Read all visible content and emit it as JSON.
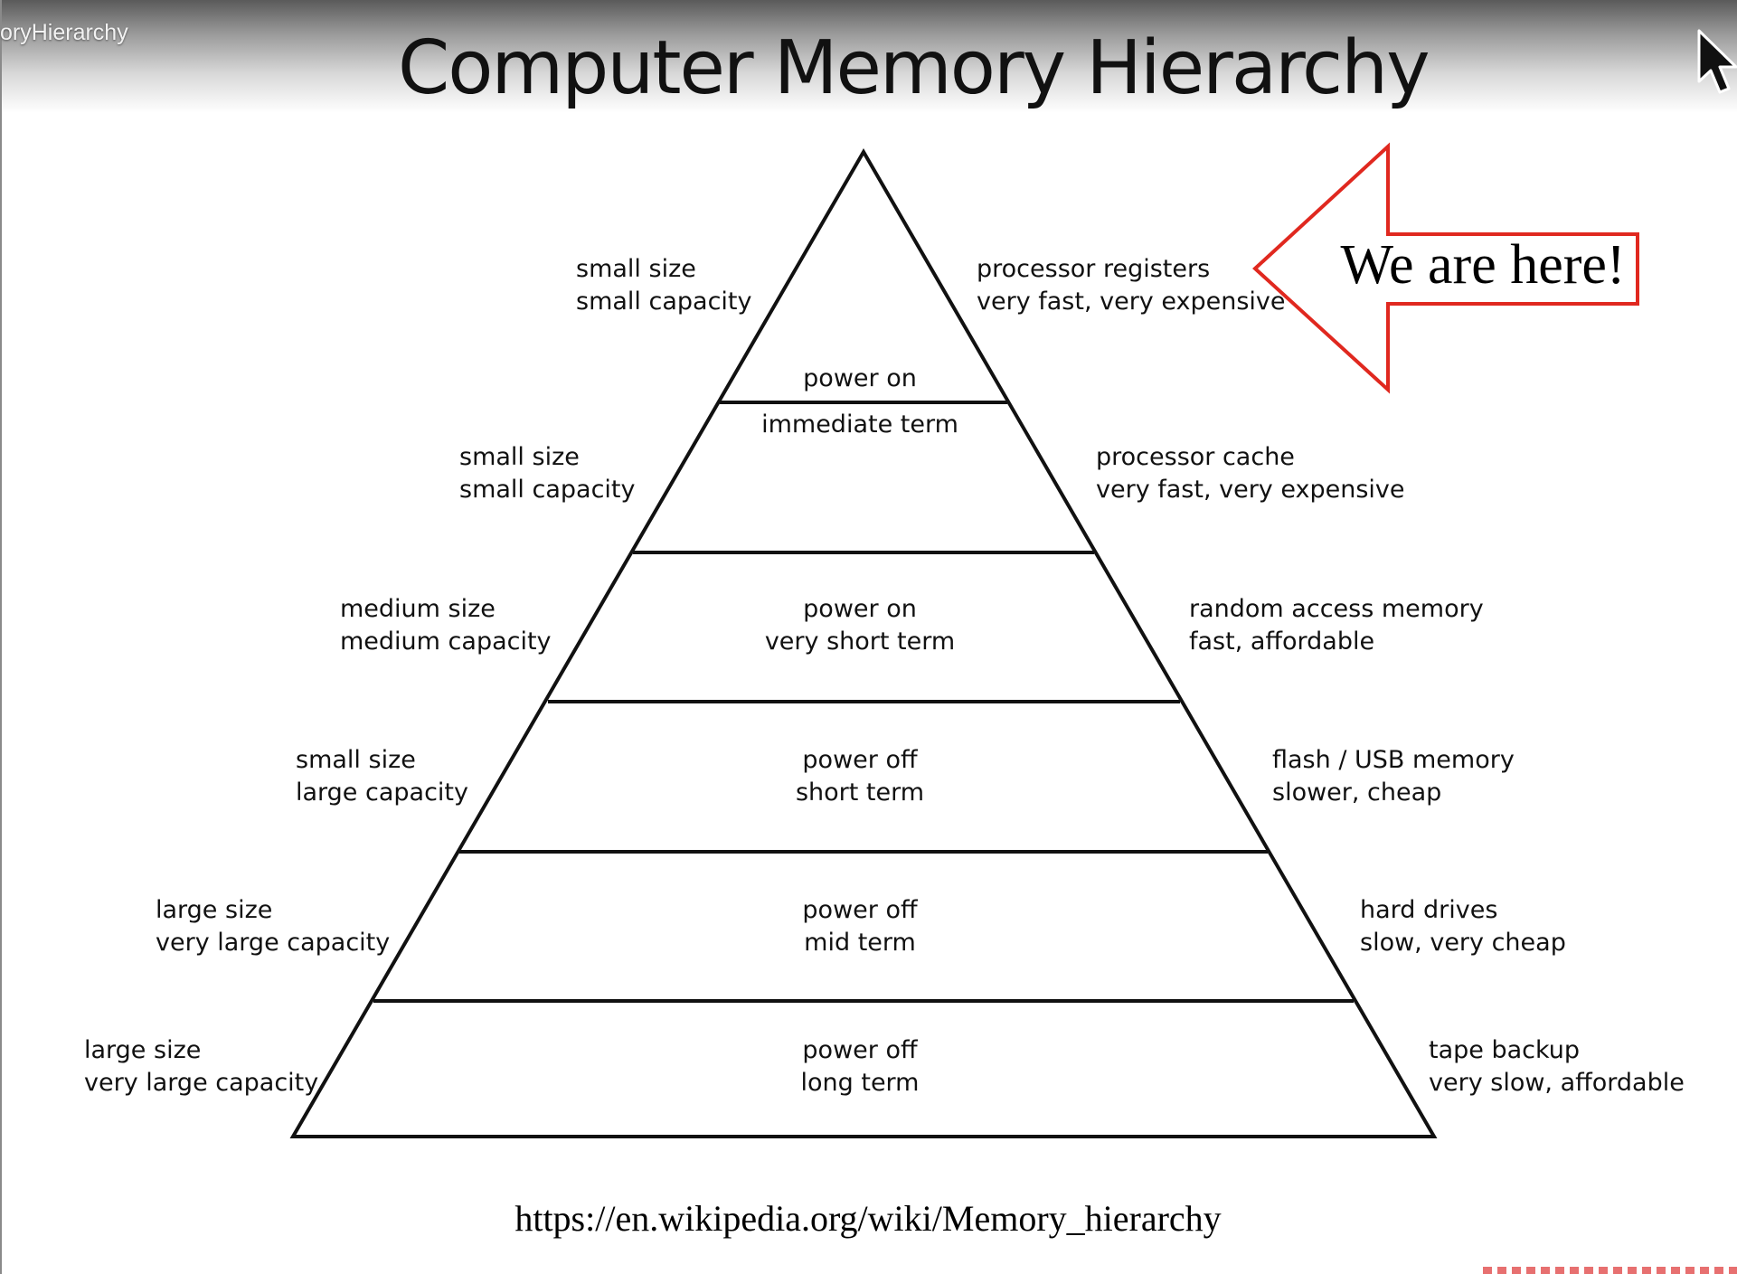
{
  "video": {
    "title_fragment": "oryHierarchy"
  },
  "slide": {
    "title": "Computer Memory Hierarchy",
    "url": "https://en.wikipedia.org/wiki/Memory_hierarchy",
    "callout": {
      "text": "We are here!",
      "color": "#e0281f"
    },
    "levels": [
      {
        "left": [
          "small size",
          "small capacity"
        ],
        "right": [
          "processor registers",
          "very fast, very expensive"
        ],
        "center": [
          "power on"
        ]
      },
      {
        "left": [
          "small size",
          "small capacity"
        ],
        "right": [
          "processor cache",
          "very fast, very expensive"
        ],
        "center": [
          "immediate term"
        ]
      },
      {
        "left": [
          "medium size",
          "medium capacity"
        ],
        "right": [
          "random access memory",
          "fast, affordable"
        ],
        "center": [
          "power on",
          "very short term"
        ]
      },
      {
        "left": [
          "small size",
          "large capacity"
        ],
        "right": [
          "flash / USB memory",
          "slower, cheap"
        ],
        "center": [
          "power off",
          "short term"
        ]
      },
      {
        "left": [
          "large size",
          "very large capacity"
        ],
        "right": [
          "hard drives",
          "slow, very cheap"
        ],
        "center": [
          "power off",
          "mid term"
        ]
      },
      {
        "left": [
          "large size",
          "very large capacity"
        ],
        "right": [
          "tape backup",
          "very slow, affordable"
        ],
        "center": [
          "power off",
          "long term"
        ]
      }
    ]
  },
  "icons": {
    "cursor": "mouse-pointer-icon"
  },
  "colors": {
    "line": "#111111",
    "arrow_outline": "#e0281f"
  }
}
